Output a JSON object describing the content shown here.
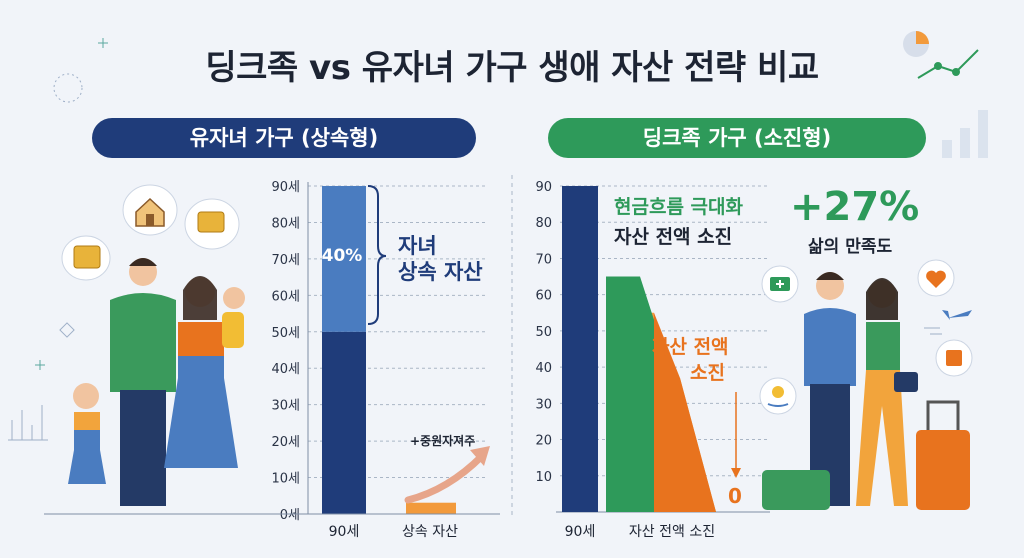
{
  "title": "딩크족 vs 유자녀 가구 생애 자산 전략 비교",
  "left_panel": {
    "header": "유자녀 가구 (상속형)",
    "share_label": "40%",
    "brace_label_1": "자녀",
    "brace_label_2": "상속 자산",
    "small_label": "+중원자져주"
  },
  "right_panel": {
    "header": "딩크족 가구 (소진형)",
    "heading_1": "현금흐름 극대화",
    "heading_2": "자산 전액 소진",
    "depletion_label_1": "자산 전액",
    "depletion_label_2": "소진",
    "zero_label": "0",
    "stat_value": "+27%",
    "stat_label": "삶의 만족도"
  },
  "colors": {
    "navy": "#1f3c7a",
    "mid_blue": "#4a7cc0",
    "green": "#2e9a5a",
    "orange_light": "#f29a3c",
    "orange_dark": "#e8731e"
  },
  "icons": [
    "house-icon",
    "coins-icon",
    "medical-kit-icon",
    "heart-icon",
    "airplane-icon",
    "suitcase-icon",
    "money-hand-icon",
    "pie-chart-icon",
    "line-chart-icon"
  ],
  "chart_data": [
    {
      "type": "bar",
      "y_tick_labels": [
        "0세",
        "10세",
        "20세",
        "30세",
        "40세",
        "50세",
        "60세",
        "70세",
        "80세",
        "90세"
      ],
      "ylim": [
        0,
        90
      ],
      "categories": [
        "90세",
        "상속 자산"
      ],
      "segments": [
        {
          "category": "90세",
          "from": 0,
          "to": 50
        },
        {
          "category": "90세",
          "from": 50,
          "to": 90,
          "label": "40%"
        }
      ],
      "inherit_bar_value": 2,
      "grid": true
    },
    {
      "type": "area",
      "y_tick_labels": [
        "10",
        "20",
        "30",
        "40",
        "50",
        "60",
        "70",
        "80",
        "90"
      ],
      "ylim": [
        0,
        90
      ],
      "categories": [
        "90세",
        "자산 전액 소진"
      ],
      "bar_value": 90,
      "depletion_steps": [
        65,
        55,
        37,
        0
      ],
      "grid": true
    }
  ]
}
